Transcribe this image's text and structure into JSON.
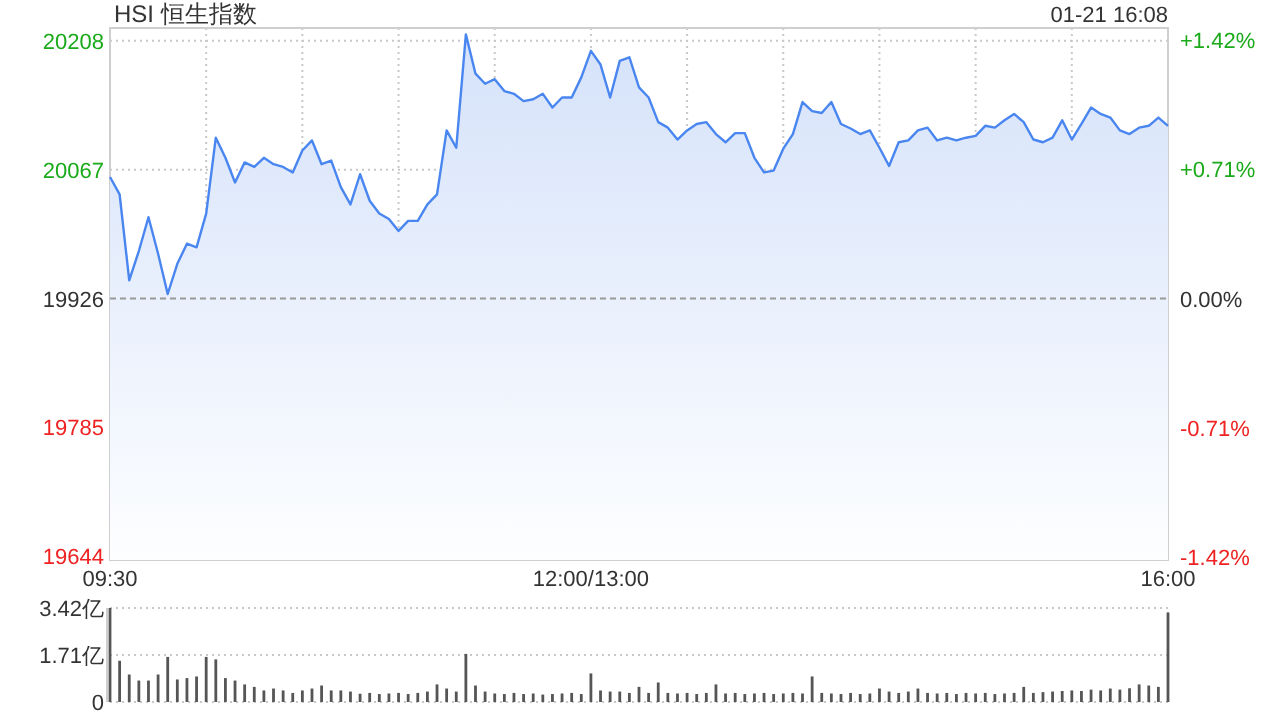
{
  "chart_data": [
    {
      "type": "area",
      "title": "HSI 恒生指数",
      "annotations": [
        "01-21 16:08"
      ],
      "categories": [
        "09:30",
        null,
        null,
        null,
        null,
        null,
        null,
        null,
        null,
        null,
        null,
        null,
        null,
        null,
        null,
        null,
        null,
        null,
        null,
        null,
        null,
        null,
        null,
        null,
        null,
        null,
        null,
        null,
        null,
        null,
        null,
        null,
        null,
        null,
        null,
        null,
        null,
        null,
        null,
        null,
        null,
        null,
        null,
        null,
        null,
        null,
        null,
        null,
        null,
        null,
        "12:00/13:00",
        null,
        null,
        null,
        null,
        null,
        null,
        null,
        null,
        null,
        null,
        null,
        null,
        null,
        null,
        null,
        null,
        null,
        null,
        null,
        null,
        null,
        null,
        null,
        null,
        null,
        null,
        null,
        null,
        null,
        null,
        null,
        null,
        null,
        null,
        null,
        null,
        null,
        null,
        null,
        null,
        null,
        null,
        null,
        null,
        null,
        null,
        null,
        null,
        null,
        null,
        null,
        null,
        null,
        null,
        null,
        null,
        null,
        null,
        null,
        "16:00"
      ],
      "ylim": [
        19640,
        20222
      ],
      "yticks": [
        19644,
        19785,
        19926,
        20067,
        20208
      ],
      "y2lim": [
        -1.435,
        1.486
      ],
      "y2ticks": [
        {
          "value": -1.42,
          "label": "-1.42%"
        },
        {
          "value": -0.71,
          "label": "-0.71%"
        },
        {
          "value": 0,
          "label": "0.00%"
        },
        {
          "value": 0.71,
          "label": "+0.71%"
        },
        {
          "value": 1.42,
          "label": "+1.42%"
        }
      ],
      "grid": true,
      "ref_lines": [
        {
          "axis": "y",
          "value": 19926
        }
      ],
      "series": [
        {
          "color": "#4a86f0",
          "values": [
            20059,
            20040,
            19946,
            19978,
            20015,
            19975,
            19931,
            19964,
            19986,
            19982,
            20019,
            20102,
            20080,
            20053,
            20075,
            20070,
            20080,
            20073,
            20070,
            20064,
            20088,
            20099,
            20073,
            20077,
            20048,
            20029,
            20062,
            20033,
            20019,
            20013,
            20000,
            20011,
            20011,
            20029,
            20040,
            20110,
            20091,
            20215,
            20172,
            20161,
            20166,
            20153,
            20150,
            20142,
            20144,
            20150,
            20135,
            20146,
            20146,
            20168,
            20197,
            20182,
            20146,
            20186,
            20190,
            20157,
            20146,
            20119,
            20113,
            20100,
            20110,
            20117,
            20119,
            20106,
            20097,
            20107,
            20107,
            20080,
            20064,
            20066,
            20090,
            20106,
            20141,
            20131,
            20129,
            20141,
            20117,
            20112,
            20106,
            20110,
            20091,
            20071,
            20097,
            20099,
            20110,
            20113,
            20099,
            20102,
            20099,
            20102,
            20104,
            20115,
            20113,
            20121,
            20128,
            20119,
            20100,
            20097,
            20102,
            20121,
            20100,
            20117,
            20135,
            20128,
            20124,
            20110,
            20106,
            20113,
            20115,
            20124,
            20115
          ]
        }
      ]
    },
    {
      "type": "bar",
      "ylim": [
        0,
        3.42
      ],
      "yticks": [
        0,
        {
          "value": 1.71,
          "label": "1.71亿"
        },
        {
          "value": 3.42,
          "label": "3.42亿"
        }
      ],
      "grid": "y",
      "tick_labels": "y",
      "color": "#555555",
      "categories": [
        null,
        null,
        null,
        null,
        null,
        null,
        null,
        null,
        null,
        null,
        null,
        null,
        null,
        null,
        null,
        null,
        null,
        null,
        null,
        null,
        null,
        null,
        null,
        null,
        null,
        null,
        null,
        null,
        null,
        null,
        null,
        null,
        null,
        null,
        null,
        null,
        null,
        null,
        null,
        null,
        null,
        null,
        null,
        null,
        null,
        null,
        null,
        null,
        null,
        null,
        null,
        null,
        null,
        null,
        null,
        null,
        null,
        null,
        null,
        null,
        null,
        null,
        null,
        null,
        null,
        null,
        null,
        null,
        null,
        null,
        null,
        null,
        null,
        null,
        null,
        null,
        null,
        null,
        null,
        null,
        null,
        null,
        null,
        null,
        null,
        null,
        null,
        null,
        null,
        null,
        null,
        null,
        null,
        null,
        null,
        null,
        null,
        null,
        null,
        null,
        null,
        null,
        null,
        null,
        null,
        null,
        null,
        null,
        null,
        null,
        null
      ],
      "values": [
        3.42,
        1.5,
        1.0,
        0.78,
        0.78,
        1.0,
        1.64,
        0.82,
        0.87,
        0.93,
        1.64,
        1.55,
        0.87,
        0.78,
        0.64,
        0.55,
        0.42,
        0.49,
        0.42,
        0.33,
        0.42,
        0.49,
        0.6,
        0.42,
        0.42,
        0.38,
        0.3,
        0.33,
        0.29,
        0.31,
        0.33,
        0.29,
        0.33,
        0.38,
        0.64,
        0.49,
        0.38,
        1.75,
        0.6,
        0.38,
        0.31,
        0.29,
        0.33,
        0.29,
        0.31,
        0.27,
        0.29,
        0.31,
        0.33,
        0.29,
        1.04,
        0.42,
        0.38,
        0.38,
        0.33,
        0.55,
        0.33,
        0.71,
        0.33,
        0.31,
        0.33,
        0.29,
        0.33,
        0.64,
        0.31,
        0.33,
        0.29,
        0.31,
        0.33,
        0.29,
        0.31,
        0.33,
        0.31,
        0.93,
        0.33,
        0.31,
        0.29,
        0.33,
        0.29,
        0.31,
        0.49,
        0.38,
        0.33,
        0.38,
        0.49,
        0.33,
        0.31,
        0.33,
        0.29,
        0.33,
        0.31,
        0.33,
        0.29,
        0.31,
        0.33,
        0.55,
        0.33,
        0.36,
        0.38,
        0.4,
        0.42,
        0.4,
        0.45,
        0.42,
        0.49,
        0.45,
        0.5,
        0.64,
        0.6,
        0.55,
        3.26
      ]
    }
  ]
}
